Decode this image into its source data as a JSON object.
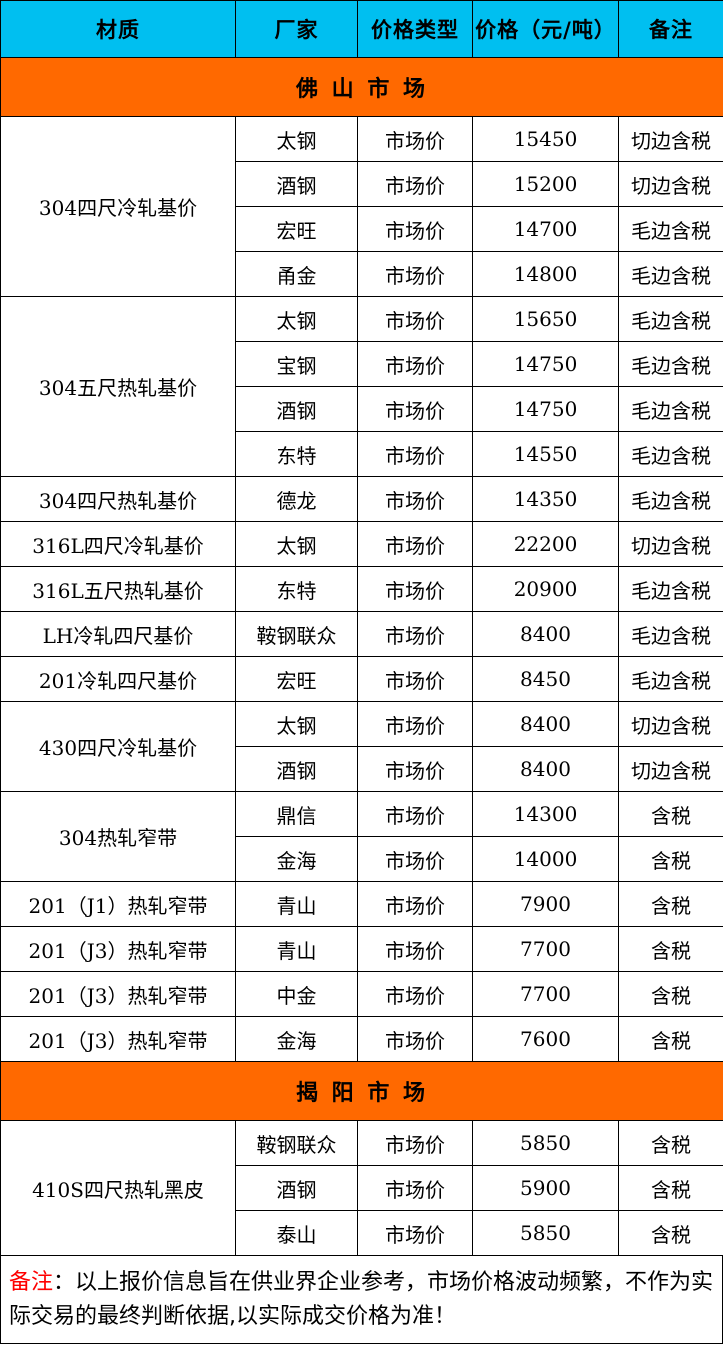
{
  "table": {
    "columns": [
      "材质",
      "厂家",
      "价格类型",
      "价格（元/吨）",
      "备注"
    ],
    "sections": [
      {
        "title": "佛 山 市 场",
        "groups": [
          {
            "material": "304四尺冷轧基价",
            "rows": [
              [
                "太钢",
                "市场价",
                "15450",
                "切边含税"
              ],
              [
                "酒钢",
                "市场价",
                "15200",
                "切边含税"
              ],
              [
                "宏旺",
                "市场价",
                "14700",
                "毛边含税"
              ],
              [
                "甬金",
                "市场价",
                "14800",
                "毛边含税"
              ]
            ]
          },
          {
            "material": "304五尺热轧基价",
            "rows": [
              [
                "太钢",
                "市场价",
                "15650",
                "毛边含税"
              ],
              [
                "宝钢",
                "市场价",
                "14750",
                "毛边含税"
              ],
              [
                "酒钢",
                "市场价",
                "14750",
                "毛边含税"
              ],
              [
                "东特",
                "市场价",
                "14550",
                "毛边含税"
              ]
            ]
          },
          {
            "material": "304四尺热轧基价",
            "rows": [
              [
                "德龙",
                "市场价",
                "14350",
                "毛边含税"
              ]
            ]
          },
          {
            "material": "316L四尺冷轧基价",
            "rows": [
              [
                "太钢",
                "市场价",
                "22200",
                "切边含税"
              ]
            ]
          },
          {
            "material": "316L五尺热轧基价",
            "rows": [
              [
                "东特",
                "市场价",
                "20900",
                "毛边含税"
              ]
            ]
          },
          {
            "material": "LH冷轧四尺基价",
            "rows": [
              [
                "鞍钢联众",
                "市场价",
                "8400",
                "毛边含税"
              ]
            ]
          },
          {
            "material": "201冷轧四尺基价",
            "rows": [
              [
                "宏旺",
                "市场价",
                "8450",
                "毛边含税"
              ]
            ]
          },
          {
            "material": "430四尺冷轧基价",
            "rows": [
              [
                "太钢",
                "市场价",
                "8400",
                "切边含税"
              ],
              [
                "酒钢",
                "市场价",
                "8400",
                "切边含税"
              ]
            ]
          },
          {
            "material": "304热轧窄带",
            "rows": [
              [
                "鼎信",
                "市场价",
                "14300",
                "含税"
              ],
              [
                "金海",
                "市场价",
                "14000",
                "含税"
              ]
            ]
          },
          {
            "material": "201（J1）热轧窄带",
            "rows": [
              [
                "青山",
                "市场价",
                "7900",
                "含税"
              ]
            ]
          },
          {
            "material": "201（J3）热轧窄带",
            "rows": [
              [
                "青山",
                "市场价",
                "7700",
                "含税"
              ]
            ]
          },
          {
            "material": "201（J3）热轧窄带",
            "rows": [
              [
                "中金",
                "市场价",
                "7700",
                "含税"
              ]
            ]
          },
          {
            "material": "201（J3）热轧窄带",
            "rows": [
              [
                "金海",
                "市场价",
                "7600",
                "含税"
              ]
            ]
          }
        ]
      },
      {
        "title": "揭 阳 市 场",
        "groups": [
          {
            "material": "410S四尺热轧黑皮",
            "rows": [
              [
                "鞍钢联众",
                "市场价",
                "5850",
                "含税"
              ],
              [
                "酒钢",
                "市场价",
                "5900",
                "含税"
              ],
              [
                "泰山",
                "市场价",
                "5850",
                "含税"
              ]
            ]
          }
        ]
      }
    ]
  },
  "footer": {
    "label": "备注",
    "text": "：以上报价信息旨在供业界企业参考，市场价格波动频繁，不作为实际交易的最终判断依据,以实际成交价格为准！"
  },
  "colors": {
    "header_bg": "#00BFF0",
    "section_bg": "#FF6900",
    "footer_label": "#FF0000",
    "border": "#000000"
  }
}
